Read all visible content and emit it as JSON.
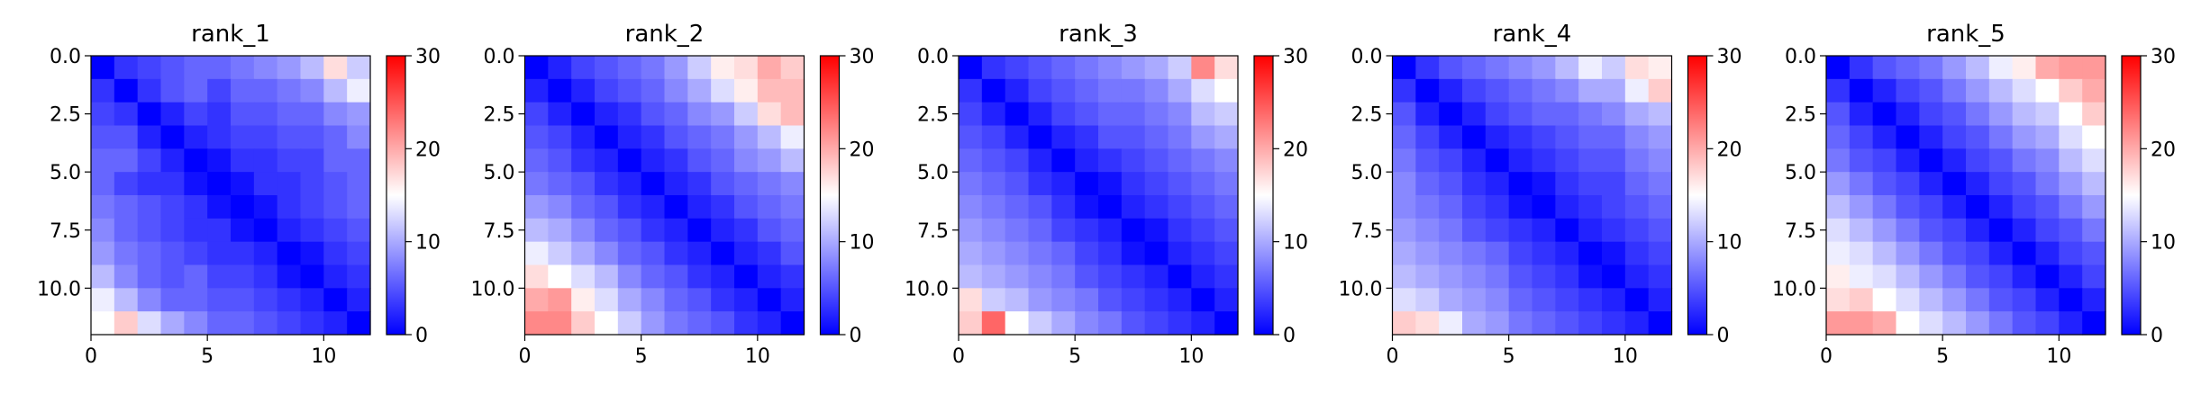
{
  "colorbar": {
    "colormap": "bwr",
    "vmin": 0,
    "vmax": 30,
    "ticks": [
      0,
      10,
      20,
      30
    ],
    "tick_labels": [
      "0",
      "10",
      "20",
      "30"
    ]
  },
  "chart_data": [
    {
      "type": "heatmap",
      "title": "rank_1",
      "xlabel": "",
      "ylabel": "",
      "xlim": [
        0,
        12
      ],
      "ylim": [
        12,
        0
      ],
      "x_ticks": [
        0,
        5,
        10
      ],
      "x_tick_labels": [
        "0",
        "5",
        "10"
      ],
      "y_ticks": [
        0,
        2.5,
        5,
        7.5,
        10
      ],
      "y_tick_labels": [
        "0.0",
        "2.5",
        "5.0",
        "7.5",
        "10.0"
      ],
      "grid": false,
      "values": [
        [
          0,
          3,
          4,
          5,
          6,
          6,
          7,
          8,
          9,
          11,
          17,
          12
        ],
        [
          3,
          0,
          3,
          5,
          6,
          4,
          6,
          6,
          7,
          8,
          11,
          14
        ],
        [
          4,
          3,
          0,
          2,
          4,
          3,
          5,
          5,
          6,
          6,
          8,
          9
        ],
        [
          5,
          5,
          2,
          0,
          2,
          3,
          4,
          4,
          5,
          5,
          6,
          8
        ],
        [
          6,
          6,
          4,
          2,
          0,
          1,
          3,
          3,
          4,
          4,
          6,
          6
        ],
        [
          6,
          4,
          3,
          3,
          1,
          0,
          1,
          3,
          3,
          4,
          5,
          6
        ],
        [
          7,
          6,
          5,
          4,
          3,
          1,
          0,
          1,
          3,
          4,
          5,
          6
        ],
        [
          8,
          6,
          5,
          4,
          3,
          3,
          1,
          0,
          2,
          3,
          4,
          5
        ],
        [
          9,
          7,
          6,
          5,
          4,
          3,
          3,
          2,
          0,
          1,
          3,
          4
        ],
        [
          11,
          8,
          6,
          5,
          6,
          4,
          4,
          3,
          1,
          0,
          2,
          3
        ],
        [
          14,
          11,
          8,
          6,
          6,
          5,
          5,
          4,
          3,
          2,
          0,
          2
        ],
        [
          15,
          18,
          13,
          10,
          8,
          6,
          6,
          5,
          4,
          3,
          2,
          0
        ]
      ]
    },
    {
      "type": "heatmap",
      "title": "rank_2",
      "xlabel": "",
      "ylabel": "",
      "xlim": [
        0,
        12
      ],
      "ylim": [
        12,
        0
      ],
      "x_ticks": [
        0,
        5,
        10
      ],
      "x_tick_labels": [
        "0",
        "5",
        "10"
      ],
      "y_ticks": [
        0,
        2.5,
        5,
        7.5,
        10
      ],
      "y_tick_labels": [
        "0.0",
        "2.5",
        "5.0",
        "7.5",
        "10.0"
      ],
      "grid": false,
      "values": [
        [
          0,
          2,
          4,
          5,
          6,
          7,
          9,
          12,
          16,
          17,
          20,
          18
        ],
        [
          2,
          0,
          2,
          4,
          5,
          6,
          8,
          10,
          13,
          16,
          19,
          19
        ],
        [
          4,
          2,
          0,
          2,
          3,
          5,
          6,
          8,
          9,
          12,
          17,
          19
        ],
        [
          5,
          4,
          2,
          0,
          2,
          3,
          5,
          6,
          7,
          9,
          11,
          14
        ],
        [
          6,
          5,
          3,
          2,
          0,
          2,
          3,
          5,
          6,
          8,
          9,
          11
        ],
        [
          7,
          6,
          5,
          3,
          2,
          0,
          2,
          3,
          5,
          6,
          7,
          8
        ],
        [
          9,
          8,
          6,
          5,
          3,
          2,
          0,
          2,
          3,
          5,
          6,
          7
        ],
        [
          11,
          10,
          8,
          6,
          5,
          3,
          2,
          0,
          2,
          3,
          5,
          6
        ],
        [
          14,
          12,
          10,
          8,
          6,
          5,
          3,
          2,
          0,
          2,
          3,
          5
        ],
        [
          17,
          15,
          13,
          11,
          8,
          6,
          5,
          3,
          2,
          0,
          2,
          3
        ],
        [
          20,
          21,
          16,
          13,
          10,
          8,
          6,
          5,
          3,
          2,
          0,
          2
        ],
        [
          22,
          22,
          18,
          15,
          12,
          9,
          7,
          6,
          5,
          3,
          2,
          0
        ]
      ]
    },
    {
      "type": "heatmap",
      "title": "rank_3",
      "xlabel": "",
      "ylabel": "",
      "xlim": [
        0,
        12
      ],
      "ylim": [
        12,
        0
      ],
      "x_ticks": [
        0,
        5,
        10
      ],
      "x_tick_labels": [
        "0",
        "5",
        "10"
      ],
      "y_ticks": [
        0,
        2.5,
        5,
        7.5,
        10
      ],
      "y_tick_labels": [
        "0.0",
        "2.5",
        "5.0",
        "7.5",
        "10.0"
      ],
      "grid": false,
      "values": [
        [
          0,
          3,
          4,
          5,
          6,
          7,
          8,
          9,
          10,
          12,
          22,
          17
        ],
        [
          3,
          0,
          2,
          4,
          5,
          6,
          7,
          7,
          8,
          10,
          13,
          15
        ],
        [
          4,
          2,
          0,
          2,
          4,
          5,
          6,
          6,
          7,
          8,
          11,
          12
        ],
        [
          5,
          4,
          2,
          0,
          2,
          3,
          5,
          5,
          6,
          7,
          9,
          10
        ],
        [
          6,
          5,
          4,
          2,
          0,
          2,
          3,
          4,
          5,
          6,
          7,
          8
        ],
        [
          7,
          6,
          5,
          3,
          2,
          0,
          1,
          3,
          4,
          5,
          6,
          7
        ],
        [
          8,
          7,
          6,
          5,
          3,
          1,
          0,
          2,
          3,
          4,
          5,
          6
        ],
        [
          9,
          8,
          7,
          6,
          4,
          3,
          2,
          0,
          1,
          3,
          4,
          5
        ],
        [
          10,
          9,
          8,
          7,
          6,
          4,
          3,
          1,
          0,
          2,
          3,
          4
        ],
        [
          11,
          10,
          9,
          8,
          7,
          5,
          4,
          3,
          2,
          0,
          2,
          3
        ],
        [
          17,
          12,
          11,
          9,
          8,
          7,
          5,
          4,
          3,
          2,
          0,
          2
        ],
        [
          18,
          24,
          15,
          12,
          10,
          8,
          7,
          5,
          4,
          3,
          2,
          0
        ]
      ]
    },
    {
      "type": "heatmap",
      "title": "rank_4",
      "xlabel": "",
      "ylabel": "",
      "xlim": [
        0,
        12
      ],
      "ylim": [
        12,
        0
      ],
      "x_ticks": [
        0,
        5,
        10
      ],
      "x_tick_labels": [
        "0",
        "5",
        "10"
      ],
      "y_ticks": [
        0,
        2.5,
        5,
        7.5,
        10
      ],
      "y_tick_labels": [
        "0.0",
        "2.5",
        "5.0",
        "7.5",
        "10.0"
      ],
      "grid": false,
      "values": [
        [
          0,
          3,
          5,
          6,
          7,
          8,
          9,
          11,
          14,
          12,
          17,
          16
        ],
        [
          3,
          0,
          2,
          4,
          5,
          6,
          7,
          8,
          10,
          10,
          14,
          18
        ],
        [
          5,
          2,
          0,
          2,
          4,
          5,
          6,
          6,
          7,
          8,
          10,
          11
        ],
        [
          6,
          4,
          2,
          0,
          2,
          3,
          4,
          5,
          6,
          6,
          8,
          9
        ],
        [
          7,
          5,
          4,
          2,
          0,
          2,
          3,
          4,
          5,
          5,
          7,
          8
        ],
        [
          8,
          6,
          5,
          3,
          2,
          0,
          1,
          3,
          4,
          4,
          6,
          7
        ],
        [
          8,
          7,
          6,
          4,
          3,
          1,
          0,
          2,
          3,
          4,
          5,
          6
        ],
        [
          9,
          8,
          7,
          5,
          4,
          3,
          2,
          0,
          2,
          3,
          4,
          5
        ],
        [
          10,
          9,
          8,
          7,
          6,
          4,
          3,
          2,
          0,
          1,
          3,
          4
        ],
        [
          11,
          10,
          9,
          8,
          7,
          5,
          4,
          3,
          1,
          0,
          2,
          3
        ],
        [
          13,
          12,
          10,
          9,
          8,
          6,
          5,
          4,
          3,
          2,
          0,
          2
        ],
        [
          18,
          17,
          14,
          10,
          9,
          7,
          6,
          5,
          4,
          3,
          2,
          0
        ]
      ]
    },
    {
      "type": "heatmap",
      "title": "rank_5",
      "xlabel": "",
      "ylabel": "",
      "xlim": [
        0,
        12
      ],
      "ylim": [
        12,
        0
      ],
      "x_ticks": [
        0,
        5,
        10
      ],
      "x_tick_labels": [
        "0",
        "5",
        "10"
      ],
      "y_ticks": [
        0,
        2.5,
        5,
        7.5,
        10
      ],
      "y_tick_labels": [
        "0.0",
        "2.5",
        "5.0",
        "7.5",
        "10.0"
      ],
      "grid": false,
      "values": [
        [
          0,
          3,
          5,
          6,
          7,
          9,
          11,
          14,
          16,
          20,
          21,
          21
        ],
        [
          3,
          0,
          2,
          4,
          5,
          7,
          9,
          11,
          13,
          15,
          18,
          20
        ],
        [
          5,
          2,
          0,
          2,
          4,
          5,
          7,
          9,
          11,
          12,
          15,
          18
        ],
        [
          6,
          4,
          2,
          0,
          2,
          4,
          5,
          7,
          9,
          10,
          13,
          15
        ],
        [
          7,
          5,
          4,
          2,
          0,
          2,
          4,
          5,
          7,
          8,
          11,
          13
        ],
        [
          9,
          7,
          5,
          4,
          2,
          0,
          2,
          4,
          5,
          7,
          9,
          11
        ],
        [
          11,
          9,
          7,
          5,
          4,
          2,
          0,
          2,
          4,
          5,
          7,
          9
        ],
        [
          13,
          11,
          9,
          7,
          5,
          4,
          2,
          0,
          2,
          4,
          5,
          7
        ],
        [
          14,
          13,
          11,
          9,
          7,
          5,
          4,
          2,
          0,
          2,
          4,
          5
        ],
        [
          16,
          14,
          13,
          11,
          9,
          7,
          5,
          4,
          2,
          0,
          2,
          4
        ],
        [
          17,
          18,
          15,
          13,
          11,
          9,
          7,
          5,
          4,
          2,
          0,
          2
        ],
        [
          21,
          21,
          20,
          15,
          13,
          11,
          9,
          7,
          5,
          4,
          2,
          0
        ]
      ]
    }
  ]
}
